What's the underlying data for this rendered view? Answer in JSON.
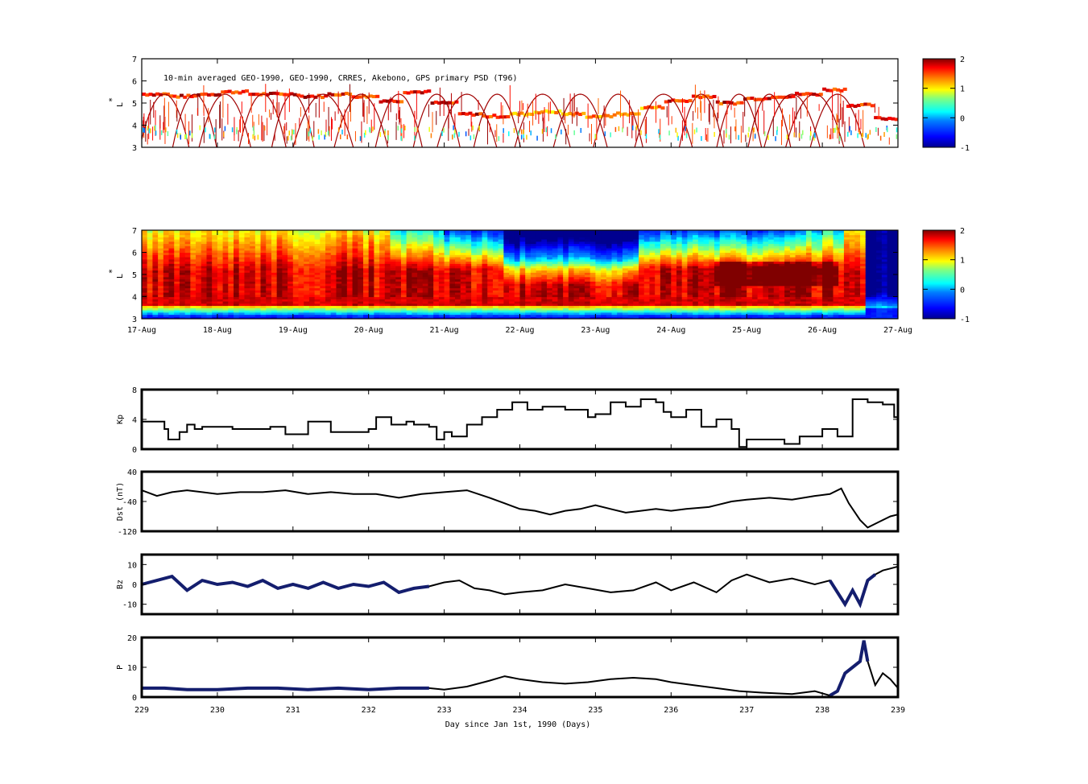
{
  "figure": {
    "psd_title": "10-min averaged GEO-1990, GEO-1990, CRRES, Akebono, GPS  primary PSD (T96)",
    "xlabel": "Day since Jan 1st, 1990 (Days)"
  },
  "colorscale": {
    "min": -1,
    "max": 2,
    "ticks": [
      "2",
      "1",
      "0",
      "-1"
    ],
    "colors": [
      "#00008f",
      "#0000ff",
      "#0080ff",
      "#00ffff",
      "#80ff80",
      "#ffff00",
      "#ff8000",
      "#ff0000",
      "#800000"
    ]
  },
  "chart_data": [
    {
      "type": "heatmap",
      "name": "psd_observed",
      "ylabel": "L*",
      "ylim": [
        3,
        7
      ],
      "yticks": [
        "7",
        "6",
        "5",
        "4",
        "3"
      ],
      "xlim": [
        229,
        239
      ],
      "colorbar": {
        "min": -1,
        "max": 2
      },
      "description_of_values": "sparse satellite-track log PSD samples",
      "track_upper_L": [
        5.4,
        5.3,
        5.4,
        5.5,
        5.4,
        5.4,
        5.3,
        5.4,
        5.3,
        5.1,
        5.5,
        5.0,
        4.5,
        4.4,
        4.5,
        4.6,
        4.5,
        4.4,
        4.5,
        4.8,
        5.1,
        5.3,
        5.0,
        5.2,
        5.3,
        5.4,
        5.6,
        4.9,
        4.3
      ]
    },
    {
      "type": "heatmap",
      "name": "psd_reanalysis",
      "ylabel": "L*",
      "ylim": [
        3,
        7
      ],
      "yticks": [
        "7",
        "6",
        "5",
        "4",
        "3"
      ],
      "xlim": [
        229,
        239
      ],
      "colorbar": {
        "min": -1,
        "max": 2
      },
      "date_ticks": [
        "17-Aug",
        "18-Aug",
        "19-Aug",
        "20-Aug",
        "21-Aug",
        "22-Aug",
        "23-Aug",
        "24-Aug",
        "25-Aug",
        "26-Aug",
        "27-Aug"
      ]
    },
    {
      "type": "line",
      "name": "Kp",
      "ylabel": "Kp",
      "ylim": [
        0,
        8
      ],
      "yticks": [
        "8",
        "4",
        "0"
      ],
      "x": [
        229.0,
        229.3,
        229.35,
        229.5,
        229.6,
        229.7,
        229.8,
        230.0,
        230.2,
        230.5,
        230.7,
        230.9,
        231.0,
        231.2,
        231.5,
        231.8,
        232.0,
        232.1,
        232.3,
        232.5,
        232.6,
        232.8,
        232.9,
        233.0,
        233.1,
        233.3,
        233.5,
        233.7,
        233.9,
        234.1,
        234.3,
        234.6,
        234.9,
        235.0,
        235.2,
        235.4,
        235.6,
        235.8,
        235.9,
        236.0,
        236.2,
        236.4,
        236.6,
        236.8,
        236.9,
        237.0,
        237.2,
        237.5,
        237.7,
        238.0,
        238.2,
        238.4,
        238.6,
        238.8,
        238.95,
        239.0
      ],
      "y": [
        3.7,
        2.7,
        1.3,
        2.3,
        3.3,
        2.7,
        3.0,
        3.0,
        2.7,
        2.7,
        3.0,
        2.0,
        2.0,
        3.7,
        2.3,
        2.3,
        2.7,
        4.3,
        3.3,
        3.7,
        3.3,
        3.0,
        1.3,
        2.3,
        1.7,
        3.3,
        4.3,
        5.3,
        6.3,
        5.3,
        5.7,
        5.3,
        4.3,
        4.7,
        6.3,
        5.7,
        6.7,
        6.3,
        5.0,
        4.3,
        5.3,
        3.0,
        4.0,
        2.7,
        0.3,
        1.3,
        1.3,
        0.7,
        1.7,
        2.7,
        1.7,
        6.7,
        6.3,
        6.0,
        4.3,
        4.0
      ]
    },
    {
      "type": "line",
      "name": "Dst",
      "ylabel": "Dst (nT)",
      "ylim": [
        -120,
        40
      ],
      "yticks": [
        "40",
        "-40",
        "-120"
      ],
      "x": [
        229.0,
        229.2,
        229.4,
        229.6,
        229.8,
        230.0,
        230.3,
        230.6,
        230.9,
        231.2,
        231.5,
        231.8,
        232.1,
        232.4,
        232.7,
        233.0,
        233.3,
        233.6,
        233.8,
        234.0,
        234.2,
        234.4,
        234.6,
        234.8,
        235.0,
        235.2,
        235.4,
        235.6,
        235.8,
        236.0,
        236.2,
        236.5,
        236.8,
        237.0,
        237.3,
        237.6,
        237.9,
        238.1,
        238.25,
        238.35,
        238.5,
        238.6,
        238.75,
        238.9,
        239.0
      ],
      "y": [
        -10,
        -25,
        -15,
        -10,
        -15,
        -20,
        -15,
        -15,
        -10,
        -20,
        -15,
        -20,
        -20,
        -30,
        -20,
        -15,
        -10,
        -30,
        -45,
        -60,
        -65,
        -75,
        -65,
        -60,
        -50,
        -60,
        -70,
        -65,
        -60,
        -65,
        -60,
        -55,
        -40,
        -35,
        -30,
        -35,
        -25,
        -20,
        -5,
        -45,
        -90,
        -110,
        -95,
        -80,
        -75
      ]
    },
    {
      "type": "line",
      "name": "Bz",
      "ylabel": "Bz",
      "ylim": [
        -15,
        15
      ],
      "yticks": [
        "10",
        "0",
        "-10"
      ],
      "x": [
        229.0,
        229.2,
        229.4,
        229.6,
        229.8,
        230.0,
        230.2,
        230.4,
        230.6,
        230.8,
        231.0,
        231.2,
        231.4,
        231.6,
        231.8,
        232.0,
        232.2,
        232.4,
        232.6,
        232.8,
        233.0,
        233.2,
        233.4,
        233.6,
        233.8,
        234.0,
        234.3,
        234.6,
        234.9,
        235.2,
        235.5,
        235.8,
        236.0,
        236.3,
        236.6,
        236.8,
        237.0,
        237.3,
        237.6,
        237.9,
        238.1,
        238.3,
        238.4,
        238.5,
        238.6,
        238.7,
        238.8,
        238.9,
        239.0
      ],
      "y": [
        0,
        2,
        4,
        -3,
        2,
        0,
        1,
        -1,
        2,
        -2,
        0,
        -2,
        1,
        -2,
        0,
        -1,
        1,
        -4,
        -2,
        -1,
        1,
        2,
        -2,
        -3,
        -5,
        -4,
        -3,
        0,
        -2,
        -4,
        -3,
        1,
        -3,
        1,
        -4,
        2,
        5,
        1,
        3,
        0,
        2,
        -10,
        -3,
        -10,
        2,
        5,
        7,
        8,
        9
      ]
    },
    {
      "type": "line",
      "name": "P",
      "ylabel": "P",
      "ylim": [
        0,
        20
      ],
      "yticks": [
        "20",
        "10",
        "0"
      ],
      "x": [
        229.0,
        229.3,
        229.6,
        230.0,
        230.4,
        230.8,
        231.2,
        231.6,
        232.0,
        232.4,
        232.8,
        233.0,
        233.3,
        233.6,
        233.8,
        234.0,
        234.3,
        234.6,
        234.9,
        235.2,
        235.5,
        235.8,
        236.0,
        236.3,
        236.6,
        236.9,
        237.2,
        237.6,
        237.9,
        238.1,
        238.2,
        238.3,
        238.4,
        238.5,
        238.55,
        238.6,
        238.7,
        238.8,
        238.9,
        239.0
      ],
      "y": [
        3,
        3,
        2.5,
        2.5,
        3,
        3,
        2.5,
        3,
        2.5,
        3,
        3,
        2.5,
        3.5,
        5.5,
        7,
        6,
        5,
        4.5,
        5,
        6,
        6.5,
        6,
        5,
        4,
        3,
        2,
        1.5,
        1,
        2,
        0.5,
        2,
        8,
        10,
        12,
        19,
        12,
        4,
        8,
        6,
        3
      ]
    }
  ],
  "dual_source": {
    "Bz": {
      "dark_until": 232.8,
      "dark_from": 238.1,
      "dark_to": 238.7
    },
    "P": {
      "dark_until": 232.8,
      "dark_from": 238.0,
      "dark_to": 238.6
    }
  },
  "x_day_ticks": [
    "229",
    "230",
    "231",
    "232",
    "233",
    "234",
    "235",
    "236",
    "237",
    "238",
    "239"
  ]
}
